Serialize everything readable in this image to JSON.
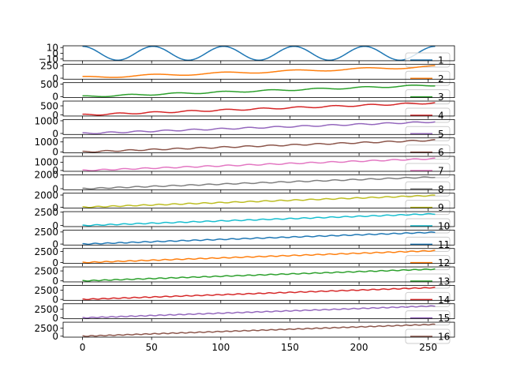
{
  "chart_data": {
    "type": "line",
    "subplots_shared_x": true,
    "x": {
      "start": 0,
      "end": 255,
      "ticks": [
        0,
        50,
        100,
        150,
        200,
        250
      ],
      "lim": [
        -14,
        269
      ]
    },
    "legend_placement": "lower-right of each panel",
    "series": [
      {
        "name": "1",
        "color": "#1f77b4",
        "yticks": [
          10,
          0,
          -10
        ],
        "ylim": [
          -13,
          13
        ],
        "amplitude": 12,
        "period": 51,
        "slope": 0,
        "phase": 0,
        "offset": 0
      },
      {
        "name": "2",
        "color": "#ff7f0e",
        "yticks": [
          250,
          0
        ],
        "ylim": [
          -20,
          280
        ],
        "amplitude": 20,
        "period": 51,
        "slope": 0.85,
        "phase": 0,
        "offset": 15
      },
      {
        "name": "3",
        "color": "#2ca02c",
        "yticks": [
          500,
          0
        ],
        "ylim": [
          -40,
          560
        ],
        "amplitude": 30,
        "period": 34,
        "slope": 1.8,
        "phase": 0,
        "offset": 0
      },
      {
        "name": "4",
        "color": "#d62728",
        "yticks": [
          500,
          0
        ],
        "ylim": [
          -60,
          760
        ],
        "amplitude": 40,
        "period": 26,
        "slope": 2.6,
        "phase": 0,
        "offset": 0
      },
      {
        "name": "5",
        "color": "#9467bd",
        "yticks": [
          1000,
          0
        ],
        "ylim": [
          -80,
          1100
        ],
        "amplitude": 50,
        "period": 20,
        "slope": 3.6,
        "phase": 0,
        "offset": 0
      },
      {
        "name": "6",
        "color": "#8c564b",
        "yticks": [
          1000,
          0
        ],
        "ylim": [
          -100,
          1400
        ],
        "amplitude": 60,
        "period": 17,
        "slope": 4.6,
        "phase": 0,
        "offset": 0
      },
      {
        "name": "7",
        "color": "#e377c2",
        "yticks": [
          1000,
          0
        ],
        "ylim": [
          -100,
          1700
        ],
        "amplitude": 65,
        "period": 15,
        "slope": 5.6,
        "phase": 0,
        "offset": 0
      },
      {
        "name": "8",
        "color": "#7f7f7f",
        "yticks": [
          2000,
          0
        ],
        "ylim": [
          -150,
          2000
        ],
        "amplitude": 70,
        "period": 13,
        "slope": 6.6,
        "phase": 0,
        "offset": 0
      },
      {
        "name": "9",
        "color": "#bcbd22",
        "yticks": [
          2000,
          0
        ],
        "ylim": [
          -150,
          2300
        ],
        "amplitude": 75,
        "period": 11,
        "slope": 7.6,
        "phase": 0,
        "offset": 0
      },
      {
        "name": "10",
        "color": "#17becf",
        "yticks": [
          2500,
          0
        ],
        "ylim": [
          -200,
          2600
        ],
        "amplitude": 80,
        "period": 10,
        "slope": 8.6,
        "phase": 0,
        "offset": 0
      },
      {
        "name": "11",
        "color": "#1f77b4",
        "yticks": [
          2500,
          0
        ],
        "ylim": [
          -200,
          2900
        ],
        "amplitude": 85,
        "period": 9,
        "slope": 9.6,
        "phase": 0,
        "offset": 0
      },
      {
        "name": "12",
        "color": "#ff7f0e",
        "yticks": [
          2500,
          0
        ],
        "ylim": [
          -200,
          3200
        ],
        "amplitude": 90,
        "period": 8.5,
        "slope": 10.6,
        "phase": 0,
        "offset": 0
      },
      {
        "name": "13",
        "color": "#2ca02c",
        "yticks": [
          2500,
          0
        ],
        "ylim": [
          -250,
          3500
        ],
        "amplitude": 95,
        "period": 8,
        "slope": 11.6,
        "phase": 0,
        "offset": 0
      },
      {
        "name": "14",
        "color": "#d62728",
        "yticks": [
          2500,
          0
        ],
        "ylim": [
          -250,
          3800
        ],
        "amplitude": 100,
        "period": 7.5,
        "slope": 12.6,
        "phase": 0,
        "offset": 0
      },
      {
        "name": "15",
        "color": "#9467bd",
        "yticks": [
          2500,
          0
        ],
        "ylim": [
          -250,
          4100
        ],
        "amplitude": 105,
        "period": 7,
        "slope": 13.6,
        "phase": 0,
        "offset": 0
      },
      {
        "name": "16",
        "color": "#8c564b",
        "yticks": [
          2500,
          0
        ],
        "ylim": [
          -300,
          4400
        ],
        "amplitude": 110,
        "period": 6.5,
        "slope": 14.6,
        "phase": 0,
        "offset": 0
      }
    ]
  }
}
